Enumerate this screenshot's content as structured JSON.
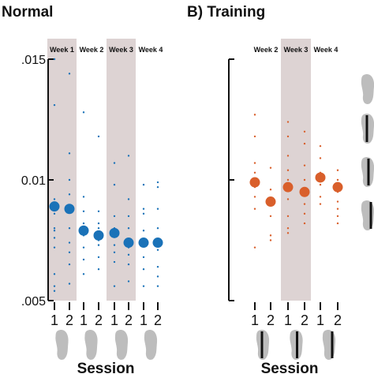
{
  "colors": {
    "panel_a": "#1a72b8",
    "panel_b": "#d95f2b",
    "week_shade": "#ddd3d3",
    "axis": "#111111",
    "foot": "#bdbdbd",
    "stripe": "#111111"
  },
  "chart_data": [
    {
      "panel": "A",
      "type": "scatter",
      "title": "Normal",
      "xlabel": "Session",
      "ylim": [
        0.005,
        0.015
      ],
      "yticks": [
        ".005",
        "0.01",
        ".015"
      ],
      "weeks": [
        "Week 1",
        "Week 2",
        "Week 3",
        "Week 4"
      ],
      "shaded_weeks": [
        0,
        2
      ],
      "sessions": [
        "1",
        "2",
        "1",
        "2",
        "1",
        "2",
        "1",
        "2"
      ],
      "session_icons": [
        "foot",
        "foot",
        "foot",
        "foot"
      ],
      "means": [
        0.0089,
        0.0088,
        0.0079,
        0.0077,
        0.0078,
        0.0074,
        0.0074,
        0.0074
      ],
      "points": [
        [
          0.015,
          0.0131,
          0.0092,
          0.009,
          0.0086,
          0.008,
          0.0079,
          0.0076,
          0.0072,
          0.0061,
          0.0056,
          0.0054
        ],
        [
          0.0144,
          0.0111,
          0.01,
          0.0094,
          0.0089,
          0.008,
          0.0074,
          0.007,
          0.0065,
          0.0057
        ],
        [
          0.0128,
          0.0093,
          0.0087,
          0.0082,
          0.0079,
          0.0077,
          0.0072,
          0.0067,
          0.0061
        ],
        [
          0.0118,
          0.0087,
          0.0082,
          0.008,
          0.0075,
          0.0073,
          0.0068,
          0.0063
        ],
        [
          0.0107,
          0.0098,
          0.0085,
          0.008,
          0.0077,
          0.0073,
          0.007,
          0.0066,
          0.0056
        ],
        [
          0.011,
          0.0092,
          0.0085,
          0.008,
          0.0074,
          0.0072,
          0.0069,
          0.0065,
          0.0058
        ],
        [
          0.0098,
          0.0088,
          0.0086,
          0.0079,
          0.0073,
          0.0068,
          0.0063,
          0.0056
        ],
        [
          0.0099,
          0.0097,
          0.0088,
          0.008,
          0.0075,
          0.0071,
          0.0064,
          0.006,
          0.0056
        ]
      ]
    },
    {
      "panel": "B",
      "type": "scatter",
      "title": "B) Training",
      "xlabel": "Session",
      "ylim": [
        0.005,
        0.015
      ],
      "weeks": [
        "Week 2",
        "Week 3",
        "Week 4"
      ],
      "shaded_weeks": [
        1
      ],
      "sessions": [
        "1",
        "2",
        "1",
        "2",
        "1",
        "2"
      ],
      "session_icons": [
        "foot-stripe-center",
        "foot-stripe-mid",
        "foot-stripe-edge"
      ],
      "side_icons": [
        "foot",
        "foot-stripe-center",
        "foot-stripe-mid",
        "foot-stripe-edge"
      ],
      "means": [
        0.0099,
        0.0091,
        0.0097,
        0.0095,
        0.0101,
        0.0097
      ],
      "points": [
        [
          0.0127,
          0.0118,
          0.0107,
          0.0103,
          0.01,
          0.0097,
          0.0093,
          0.0088,
          0.0072
        ],
        [
          0.0105,
          0.0096,
          0.009,
          0.0085,
          0.0077,
          0.0075
        ],
        [
          0.0124,
          0.0118,
          0.011,
          0.0104,
          0.01,
          0.0092,
          0.0085,
          0.008,
          0.0078
        ],
        [
          0.012,
          0.0115,
          0.0106,
          0.01,
          0.0095,
          0.009,
          0.0086,
          0.0082
        ],
        [
          0.0114,
          0.0109,
          0.0103,
          0.0101,
          0.0098,
          0.0093,
          0.009
        ],
        [
          0.0104,
          0.01,
          0.0095,
          0.0091,
          0.0088,
          0.0085,
          0.0082
        ]
      ]
    }
  ]
}
